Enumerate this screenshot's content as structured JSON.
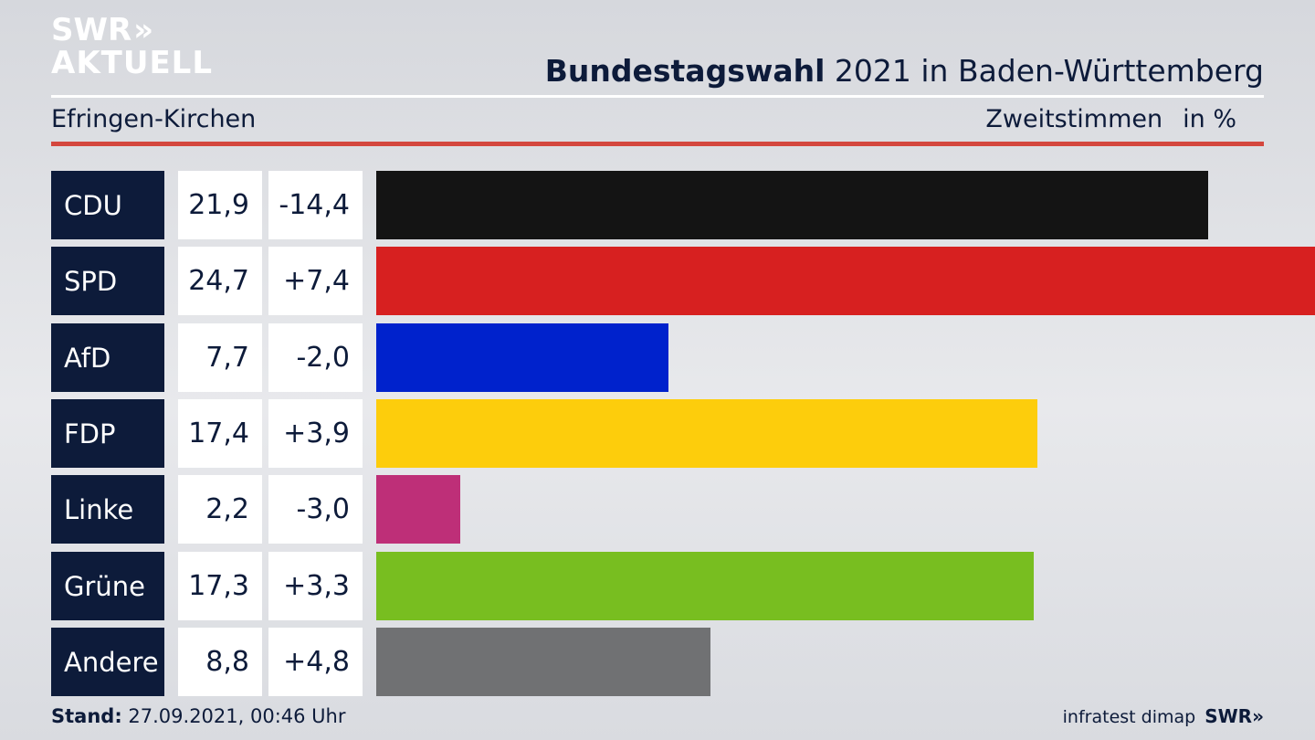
{
  "logo": {
    "line1": "SWR",
    "line1_mark": "»",
    "line2": "AKTUELL"
  },
  "header": {
    "title_bold": "Bundestagswahl",
    "title_rest": " 2021 in Baden-Württemberg",
    "location": "Efringen-Kirchen",
    "vote_type": "Zweitstimmen",
    "unit": "in %"
  },
  "chart_data": {
    "type": "bar",
    "orientation": "horizontal",
    "categories": [
      "CDU",
      "SPD",
      "AfD",
      "FDP",
      "Linke",
      "Grüne",
      "Andere"
    ],
    "values": [
      21.9,
      24.7,
      7.7,
      17.4,
      2.2,
      17.3,
      8.8
    ],
    "value_labels": [
      "21,9",
      "24,7",
      "7,7",
      "17,4",
      "2,2",
      "17,3",
      "8,8"
    ],
    "diff_labels": [
      "-14,4",
      "+7,4",
      "-2,0",
      "+3,9",
      "-3,0",
      "+3,3",
      "+4,8"
    ],
    "diffs": [
      -14.4,
      7.4,
      -2.0,
      3.9,
      -3.0,
      3.3,
      4.8
    ],
    "colors": [
      "#141414",
      "#d72020",
      "#0022cc",
      "#fdcd0c",
      "#be2f78",
      "#78be20",
      "#707173"
    ],
    "xlim": [
      0,
      24.7
    ],
    "grid": false,
    "legend": "none"
  },
  "footer": {
    "stand_label": "Stand:",
    "stand_value": " 27.09.2021, 00:46 Uhr",
    "source": "infratest dimap",
    "brand": "SWR»"
  }
}
